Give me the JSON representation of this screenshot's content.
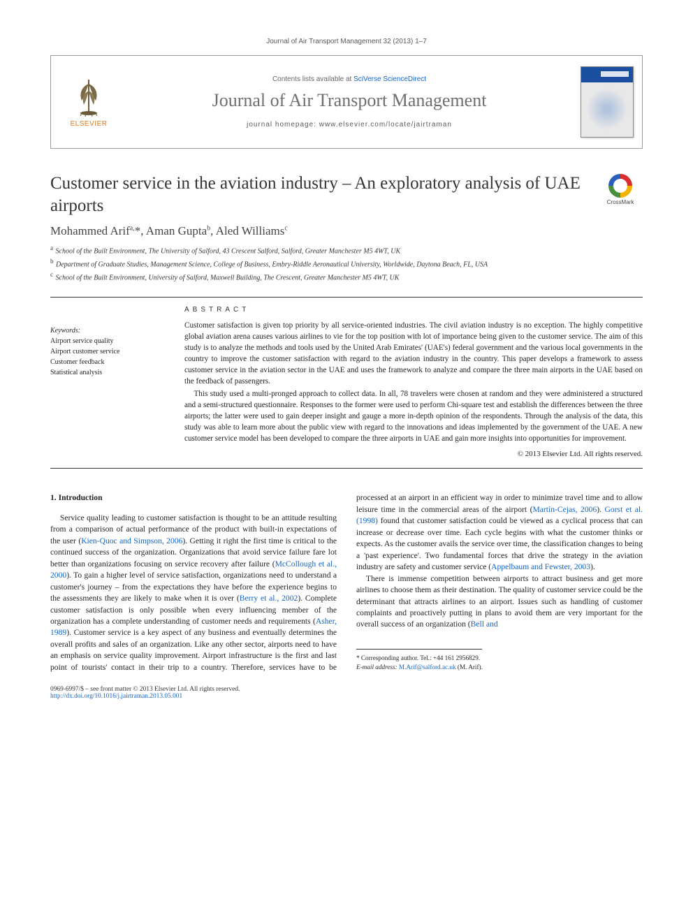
{
  "journal_header": "Journal of Air Transport Management 32 (2013) 1–7",
  "masthead": {
    "contents_prefix": "Contents lists available at ",
    "contents_link": "SciVerse ScienceDirect",
    "journal_name": "Journal of Air Transport Management",
    "homepage_label": "journal homepage: ",
    "homepage_url": "www.elsevier.com/locate/jairtraman",
    "publisher": "ELSEVIER"
  },
  "crossmark_label": "CrossMark",
  "title": "Customer service in the aviation industry – An exploratory analysis of UAE airports",
  "authors_html": "Mohammed Arif<sup>a,</sup>*, Aman Gupta<sup>b</sup>, Aled Williams<sup>c</sup>",
  "affiliations": [
    "a|School of the Built Environment, The University of Salford, 43 Crescent Salford, Salford, Greater Manchester M5 4WT, UK",
    "b|Department of Graduate Studies, Management Science, College of Business, Embry-Riddle Aeronautical University, Worldwide, Daytona Beach, FL, USA",
    "c|School of the Built Environment, University of Salford, Maxwell Building, The Crescent, Greater Manchester M5 4WT, UK"
  ],
  "keywords_head": "Keywords:",
  "keywords": [
    "Airport service quality",
    "Airport customer service",
    "Customer feedback",
    "Statistical analysis"
  ],
  "abstract_head": "ABSTRACT",
  "abstract_paras": [
    "Customer satisfaction is given top priority by all service-oriented industries. The civil aviation industry is no exception. The highly competitive global aviation arena causes various airlines to vie for the top position with lot of importance being given to the customer service. The aim of this study is to analyze the methods and tools used by the United Arab Emirates' (UAE's) federal government and the various local governments in the country to improve the customer satisfaction with regard to the aviation industry in the country. This paper develops a framework to assess customer service in the aviation sector in the UAE and uses the framework to analyze and compare the three main airports in the UAE based on the feedback of passengers.",
    "This study used a multi-pronged approach to collect data. In all, 78 travelers were chosen at random and they were administered a structured and a semi-structured questionnaire. Responses to the former were used to perform Chi-square test and establish the differences between the three airports; the latter were used to gain deeper insight and gauge a more in-depth opinion of the respondents. Through the analysis of the data, this study was able to learn more about the public view with regard to the innovations and ideas implemented by the government of the UAE. A new customer service model has been developed to compare the three airports in UAE and gain more insights into opportunities for improvement."
  ],
  "copyright": "© 2013 Elsevier Ltd. All rights reserved.",
  "intro_head": "1. Introduction",
  "intro_para1_pre": "Service quality leading to customer satisfaction is thought to be an attitude resulting from a comparison of actual performance of the product with built-in expectations of the user (",
  "intro_link1": "Kien-Quoc and Simpson, 2006",
  "intro_para1_mid1": "). Getting it right the first time is critical to the continued success of the organization. Organizations that avoid service failure fare lot better than organizations focusing on service recovery after failure (",
  "intro_link2": "McCollough et al., 2000",
  "intro_para1_mid2": "). To gain a higher level of service satisfaction, organizations need to understand a customer's journey – from the expectations they have before the experience begins to the assessments they are likely to make when it is over (",
  "intro_link3": "Berry et al., 2002",
  "intro_para1_mid3": "). Complete customer satisfaction is only possible when every influencing member of the organization has a complete understanding of customer needs and requirements (",
  "intro_link4": "Asher, 1989",
  "intro_para1_mid4": "). Customer service is a key aspect of any business and ",
  "intro_col2_pre": "eventually determines the overall profits and sales of an organization. Like any other sector, airports need to have an emphasis on service quality improvement. Airport infrastructure is the first and last point of tourists' contact in their trip to a country. Therefore, services have to be processed at an airport in an efficient way in order to minimize travel time and to allow leisure time in the commercial areas of the airport (",
  "intro_link5": "Martín-Cejas, 2006",
  "intro_col2_mid1": "). ",
  "intro_link6": "Gorst et al. (1998)",
  "intro_col2_mid2": " found that customer satisfaction could be viewed as a cyclical process that can increase or decrease over time. Each cycle begins with what the customer thinks or expects. As the customer avails the service over time, the classification changes to being a 'past experience'. Two fundamental forces that drive the strategy in the aviation industry are safety and customer service (",
  "intro_link7": "Appelbaum and Fewster, 2003",
  "intro_col2_mid3": ").",
  "intro_para2_pre": "There is immense competition between airports to attract business and get more airlines to choose them as their destination. The quality of customer service could be the determinant that attracts airlines to an airport. Issues such as handling of customer complaints and proactively putting in plans to avoid them are very important for the overall success of an organization (",
  "intro_link8": "Bell and",
  "footnote_corresp": "* Corresponding author. Tel.: +44 161 2956829.",
  "footnote_email_label": "E-mail address: ",
  "footnote_email": "M.Arif@salford.ac.uk",
  "footnote_email_suffix": " (M. Arif).",
  "footer_left_line1": "0969-6997/$ – see front matter © 2013 Elsevier Ltd. All rights reserved.",
  "footer_doi": "http://dx.doi.org/10.1016/j.jairtraman.2013.05.001",
  "colors": {
    "link": "#1064c8",
    "publisher_orange": "#e67817",
    "text": "#222222",
    "journal_grey": "#6f6f6f",
    "rule": "#333333"
  },
  "fonts": {
    "body": "Georgia, 'Times New Roman', serif",
    "sans": "Arial, sans-serif",
    "title_pt": 25,
    "body_pt": 11.6,
    "abstract_pt": 11.2,
    "affil_pt": 10
  }
}
